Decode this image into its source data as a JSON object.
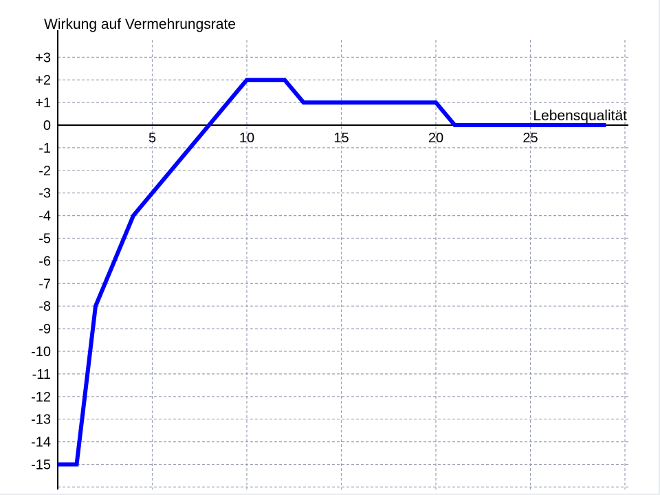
{
  "chart_data": {
    "type": "line",
    "title": "",
    "ylabel": "Wirkung auf Vermehrungsrate",
    "xlabel": "Lebensqualität",
    "xlim": [
      0,
      30
    ],
    "ylim": [
      -16,
      3
    ],
    "x_grid": [
      5,
      10,
      15,
      20,
      25,
      30
    ],
    "y_grid": [
      3,
      2,
      1,
      0,
      -1,
      -2,
      -3,
      -4,
      -5,
      -6,
      -7,
      -8,
      -9,
      -10,
      -11,
      -12,
      -13,
      -14,
      -15,
      -16
    ],
    "x_ticks": [
      {
        "value": 5,
        "label": "5"
      },
      {
        "value": 10,
        "label": "10"
      },
      {
        "value": 15,
        "label": "15"
      },
      {
        "value": 20,
        "label": "20"
      },
      {
        "value": 25,
        "label": "25"
      }
    ],
    "y_ticks": [
      {
        "value": 3,
        "label": "+3"
      },
      {
        "value": 2,
        "label": "+2"
      },
      {
        "value": 1,
        "label": "+1"
      },
      {
        "value": 0,
        "label": "0"
      },
      {
        "value": -1,
        "label": "-1"
      },
      {
        "value": -2,
        "label": "-2"
      },
      {
        "value": -3,
        "label": "-3"
      },
      {
        "value": -4,
        "label": "-4"
      },
      {
        "value": -5,
        "label": "-5"
      },
      {
        "value": -6,
        "label": "-6"
      },
      {
        "value": -7,
        "label": "-7"
      },
      {
        "value": -8,
        "label": "-8"
      },
      {
        "value": -9,
        "label": "-9"
      },
      {
        "value": -10,
        "label": "-10"
      },
      {
        "value": -11,
        "label": "-11"
      },
      {
        "value": -12,
        "label": "-12"
      },
      {
        "value": -13,
        "label": "-13"
      },
      {
        "value": -14,
        "label": "-14"
      },
      {
        "value": -15,
        "label": "-15"
      }
    ],
    "series": [
      {
        "name": "Wirkung",
        "color": "#0000ff",
        "x": [
          0,
          1,
          2,
          4,
          10,
          12,
          13,
          20,
          21,
          29
        ],
        "y": [
          -15,
          -15,
          -8,
          -4,
          2,
          2,
          1,
          1,
          0,
          0
        ]
      }
    ],
    "grid": true,
    "legend": "none"
  }
}
